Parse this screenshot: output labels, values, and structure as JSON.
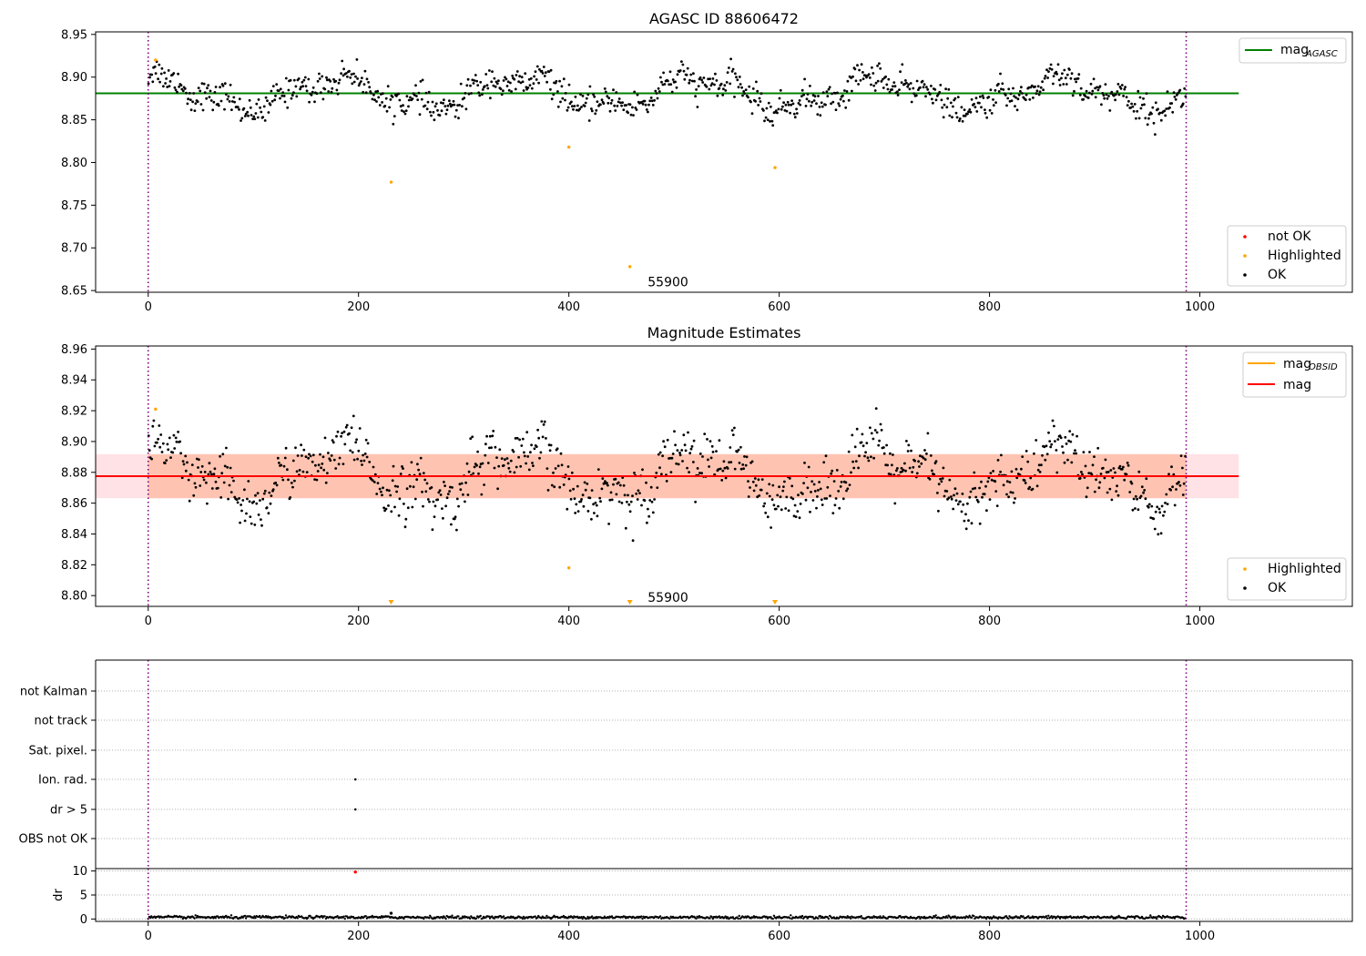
{
  "chart_data": [
    {
      "id": "top",
      "type": "scatter",
      "title": "AGASC ID 88606472",
      "xlim": [
        -50,
        1145
      ],
      "ylim": [
        8.648,
        8.953
      ],
      "xticks": [
        0,
        200,
        400,
        600,
        800,
        1000
      ],
      "yticks": [
        8.65,
        8.7,
        8.75,
        8.8,
        8.85,
        8.9,
        8.95
      ],
      "ytick_labels": [
        "8.65",
        "8.70",
        "8.75",
        "8.80",
        "8.85",
        "8.90",
        "8.95"
      ],
      "vlines": [
        0,
        987
      ],
      "hlines": [
        {
          "name": "mag_AGASC",
          "y": 8.881,
          "x_range": [
            -50,
            1037
          ],
          "color": "#008000"
        }
      ],
      "ok_series": {
        "name": "OK",
        "n": 987,
        "baseline": 8.881,
        "amplitude": 0.022,
        "noise": 0.008
      },
      "highlighted": [
        {
          "x": 7,
          "y": 8.92
        },
        {
          "x": 231,
          "y": 8.777
        },
        {
          "x": 400,
          "y": 8.818
        },
        {
          "x": 458,
          "y": 8.678
        },
        {
          "x": 596,
          "y": 8.794
        }
      ],
      "annotation": {
        "text": "55900",
        "x": 475,
        "y": 8.66
      },
      "legend_lines": [
        {
          "label": "mag",
          "sub": "AGASC",
          "color": "#008000"
        }
      ],
      "legend_points": [
        {
          "label": "not OK",
          "color": "#ff0000"
        },
        {
          "label": "Highlighted",
          "color": "#ffa500"
        },
        {
          "label": "OK",
          "color": "#000000"
        }
      ]
    },
    {
      "id": "middle",
      "type": "scatter",
      "title": "Magnitude Estimates",
      "xlim": [
        -50,
        1145
      ],
      "ylim": [
        8.793,
        8.962
      ],
      "xticks": [
        0,
        200,
        400,
        600,
        800,
        1000
      ],
      "yticks": [
        8.8,
        8.82,
        8.84,
        8.86,
        8.88,
        8.9,
        8.92,
        8.94,
        8.96
      ],
      "ytick_labels": [
        "8.80",
        "8.82",
        "8.84",
        "8.86",
        "8.88",
        "8.90",
        "8.92",
        "8.94",
        "8.96"
      ],
      "vlines": [
        0,
        987
      ],
      "mag_line": {
        "name": "mag",
        "y": 8.8775,
        "x_range": [
          -50,
          1037
        ],
        "color": "#ff0000"
      },
      "bands": [
        {
          "name": "mag_OBSID band",
          "y0": 8.8632,
          "y1": 8.8918,
          "x_range": [
            0,
            987
          ],
          "color": "#ffa070"
        },
        {
          "name": "mag band",
          "y0": 8.8632,
          "y1": 8.8918,
          "x_range": [
            -50,
            1037
          ],
          "color": "#ffb6c1"
        }
      ],
      "ok_series": {
        "name": "OK",
        "n": 987,
        "baseline": 8.8775,
        "amplitude": 0.02,
        "noise": 0.0085
      },
      "highlighted": [
        {
          "x": 7,
          "y": 8.921
        },
        {
          "x": 400,
          "y": 8.818
        }
      ],
      "below_markers": [
        {
          "x": 231
        },
        {
          "x": 458
        },
        {
          "x": 596
        }
      ],
      "annotation": {
        "text": "55900",
        "x": 475,
        "y": 8.799
      },
      "legend_lines": [
        {
          "label": "mag",
          "sub": "OBSID",
          "color": "#ffa500"
        },
        {
          "label": "mag",
          "sub": "",
          "color": "#ff0000"
        }
      ],
      "legend_points": [
        {
          "label": "Highlighted",
          "color": "#ffa500"
        },
        {
          "label": "OK",
          "color": "#000000"
        }
      ]
    },
    {
      "id": "flags",
      "type": "scatter",
      "xlim": [
        -50,
        1145
      ],
      "xticks": [
        0,
        200,
        400,
        600,
        800,
        1000
      ],
      "vlines": [
        0,
        987
      ],
      "categories": [
        "not Kalman",
        "not track",
        "Sat. pixel.",
        "Ion. rad.",
        "dr > 5",
        "OBS not OK"
      ],
      "flag_points": [
        {
          "category": "Ion. rad.",
          "x": 197
        },
        {
          "category": "dr > 5",
          "x": 197
        }
      ]
    },
    {
      "id": "dr",
      "type": "scatter",
      "ylabel": "dr",
      "xlim": [
        -50,
        1145
      ],
      "ylim": [
        -0.5,
        10.5
      ],
      "xticks": [
        0,
        200,
        400,
        600,
        800,
        1000
      ],
      "yticks": [
        0,
        5,
        10
      ],
      "ytick_labels": [
        "0",
        "5",
        "10"
      ],
      "vlines": [
        0,
        987
      ],
      "dr_series": {
        "n": 987,
        "base": 0.35,
        "noise": 0.15
      },
      "spikes": [
        {
          "x": 197,
          "y": 9.8,
          "color": "#ff0000"
        },
        {
          "x": 231,
          "y": 1.2,
          "color": "#000000"
        }
      ]
    }
  ]
}
